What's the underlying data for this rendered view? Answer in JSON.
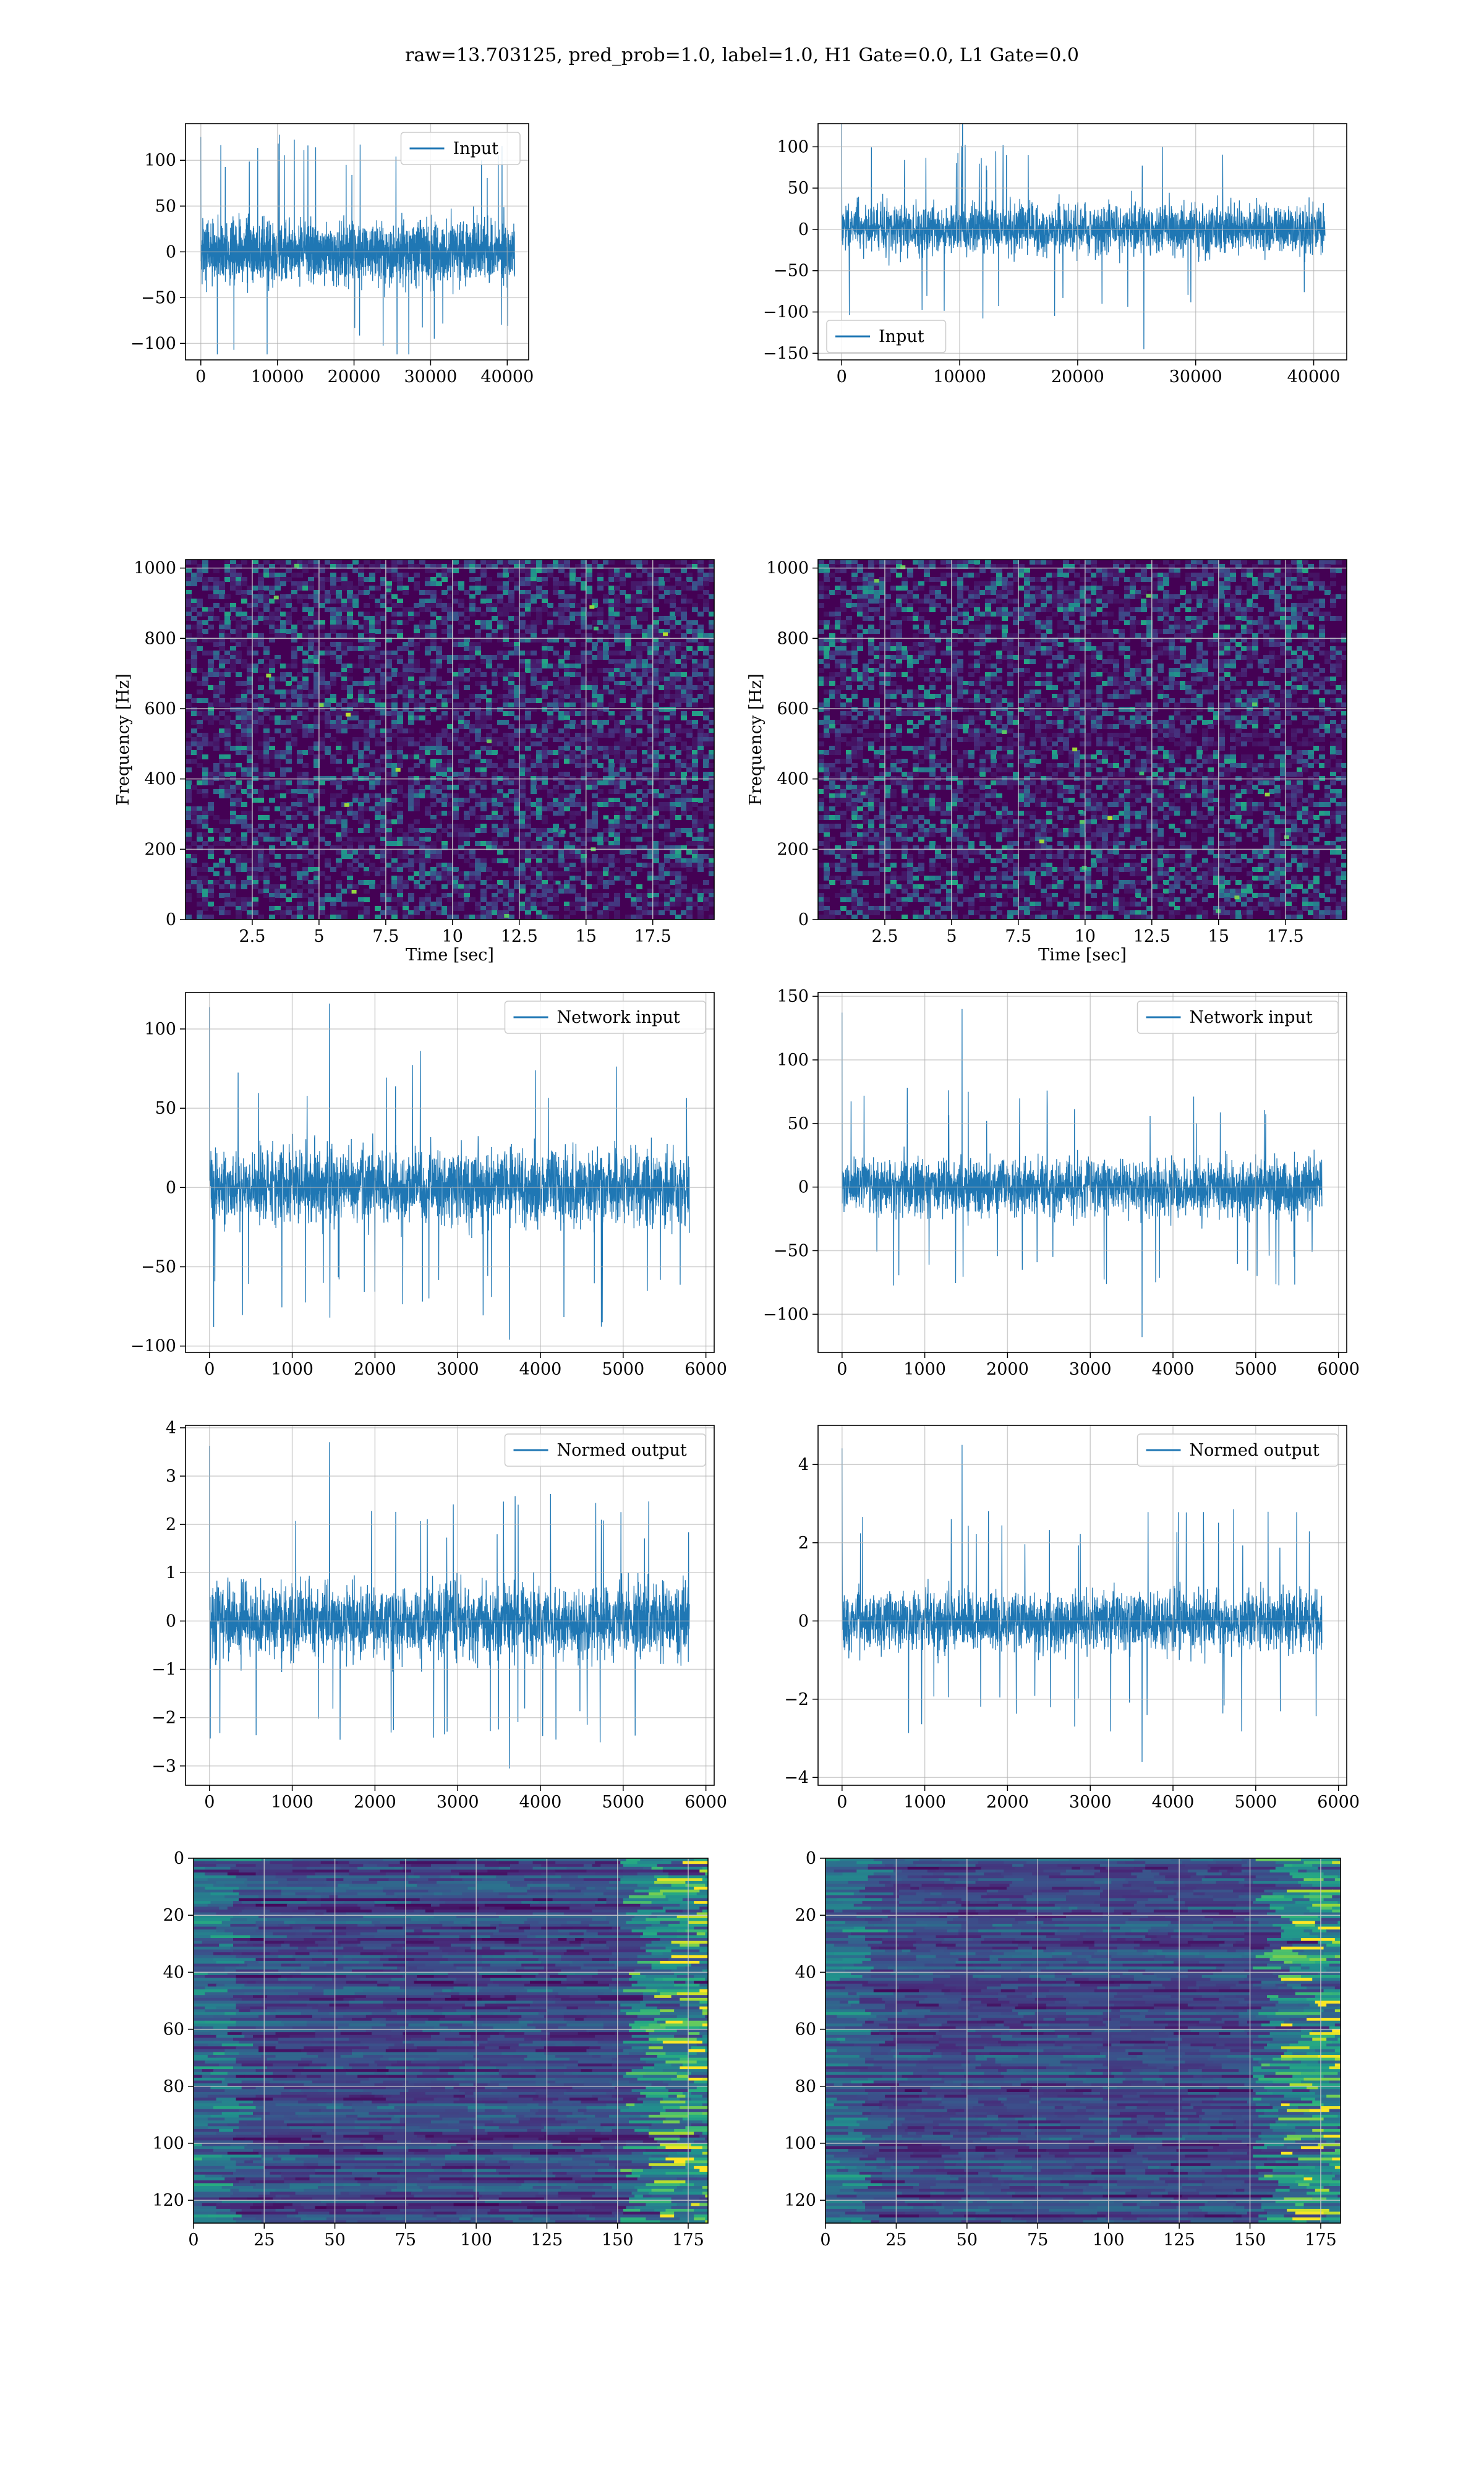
{
  "figure": {
    "suptitle": "raw=13.703125, pred_prob=1.0, label=1.0, H1 Gate=0.0, L1 Gate=0.0"
  },
  "colors": {
    "series": "#1f77b4",
    "grid": "#b0b0b0",
    "viridis_dark": "#440154",
    "viridis_mid": "#21918c",
    "viridis_bright": "#fde725"
  },
  "chart_data": [
    {
      "id": "r0c0",
      "type": "line",
      "legend": "Input",
      "legend_loc": "upper right",
      "xlim": [
        -2000,
        42800
      ],
      "ylim": [
        -118,
        140
      ],
      "xticks": [
        0,
        10000,
        20000,
        30000,
        40000
      ],
      "yticks": [
        -100,
        -50,
        0,
        50,
        100
      ],
      "x_range": [
        0,
        40960
      ],
      "envelope": {
        "core": 78,
        "spike_max": 128,
        "spike_min": -112
      },
      "grid": true
    },
    {
      "id": "r0c1",
      "type": "line",
      "legend": "Input",
      "legend_loc": "lower left",
      "xlim": [
        -2000,
        42800
      ],
      "ylim": [
        -158,
        128
      ],
      "xticks": [
        0,
        10000,
        20000,
        30000,
        40000
      ],
      "yticks": [
        -150,
        -100,
        -50,
        0,
        50,
        100
      ],
      "x_range": [
        0,
        40960
      ],
      "envelope": {
        "core": 70,
        "spike_max": 130,
        "spike_min": -145
      },
      "grid": true
    },
    {
      "id": "r1c0",
      "type": "heatmap",
      "colormap": "viridis",
      "xlabel": "Time [sec]",
      "ylabel": "Frequency [Hz]",
      "xlim": [
        0,
        19.8
      ],
      "ylim": [
        0,
        1024
      ],
      "xticks": [
        2.5,
        5.0,
        7.5,
        10.0,
        12.5,
        15.0,
        17.5
      ],
      "yticks": [
        0,
        200,
        400,
        600,
        800,
        1000
      ],
      "grid": true
    },
    {
      "id": "r1c1",
      "type": "heatmap",
      "colormap": "viridis",
      "xlabel": "Time [sec]",
      "ylabel": "Frequency [Hz]",
      "xlim": [
        0,
        19.8
      ],
      "ylim": [
        0,
        1024
      ],
      "xticks": [
        2.5,
        5.0,
        7.5,
        10.0,
        12.5,
        15.0,
        17.5
      ],
      "yticks": [
        0,
        200,
        400,
        600,
        800,
        1000
      ],
      "grid": true
    },
    {
      "id": "r2c0",
      "type": "line",
      "legend": "Network input",
      "legend_loc": "upper right",
      "xlim": [
        -290,
        6100
      ],
      "ylim": [
        -104,
        123
      ],
      "xticks": [
        0,
        1000,
        2000,
        3000,
        4000,
        5000,
        6000
      ],
      "yticks": [
        -100,
        -50,
        0,
        50,
        100
      ],
      "x_range": [
        0,
        5800
      ],
      "envelope": {
        "core": 55,
        "spike_max": 116,
        "spike_min": -96
      },
      "grid": true
    },
    {
      "id": "r2c1",
      "type": "line",
      "legend": "Network input",
      "legend_loc": "upper right",
      "xlim": [
        -290,
        6100
      ],
      "ylim": [
        -130,
        153
      ],
      "xticks": [
        0,
        1000,
        2000,
        3000,
        4000,
        5000,
        6000
      ],
      "yticks": [
        -100,
        -50,
        0,
        50,
        100,
        150
      ],
      "x_range": [
        0,
        5800
      ],
      "envelope": {
        "core": 50,
        "spike_max": 140,
        "spike_min": -118
      },
      "grid": true
    },
    {
      "id": "r3c0",
      "type": "line",
      "legend": "Normed output",
      "legend_loc": "upper right",
      "xlim": [
        -290,
        6100
      ],
      "ylim": [
        -3.4,
        4.05
      ],
      "xticks": [
        0,
        1000,
        2000,
        3000,
        4000,
        5000,
        6000
      ],
      "yticks": [
        -3,
        -2,
        -1,
        0,
        1,
        2,
        3,
        4
      ],
      "x_range": [
        0,
        5800
      ],
      "envelope": {
        "core": 1.7,
        "spike_max": 3.7,
        "spike_min": -3.05
      },
      "grid": true
    },
    {
      "id": "r3c1",
      "type": "line",
      "legend": "Normed output",
      "legend_loc": "upper right",
      "xlim": [
        -290,
        6100
      ],
      "ylim": [
        -4.2,
        5.0
      ],
      "xticks": [
        0,
        1000,
        2000,
        3000,
        4000,
        5000,
        6000
      ],
      "yticks": [
        -4,
        -2,
        0,
        2,
        4
      ],
      "x_range": [
        0,
        5800
      ],
      "envelope": {
        "core": 1.8,
        "spike_max": 4.5,
        "spike_min": -3.6
      },
      "grid": true
    },
    {
      "id": "r4c0",
      "type": "heatmap",
      "colormap": "viridis",
      "xlim": [
        0,
        182
      ],
      "ylim": [
        128,
        0
      ],
      "xticks": [
        0,
        25,
        50,
        75,
        100,
        125,
        150,
        175
      ],
      "yticks": [
        0,
        20,
        40,
        60,
        80,
        100,
        120
      ],
      "grid": true
    },
    {
      "id": "r4c1",
      "type": "heatmap",
      "colormap": "viridis",
      "xlim": [
        0,
        182
      ],
      "ylim": [
        128,
        0
      ],
      "xticks": [
        0,
        25,
        50,
        75,
        100,
        125,
        150,
        175
      ],
      "yticks": [
        0,
        20,
        40,
        60,
        80,
        100,
        120
      ],
      "grid": true
    }
  ]
}
